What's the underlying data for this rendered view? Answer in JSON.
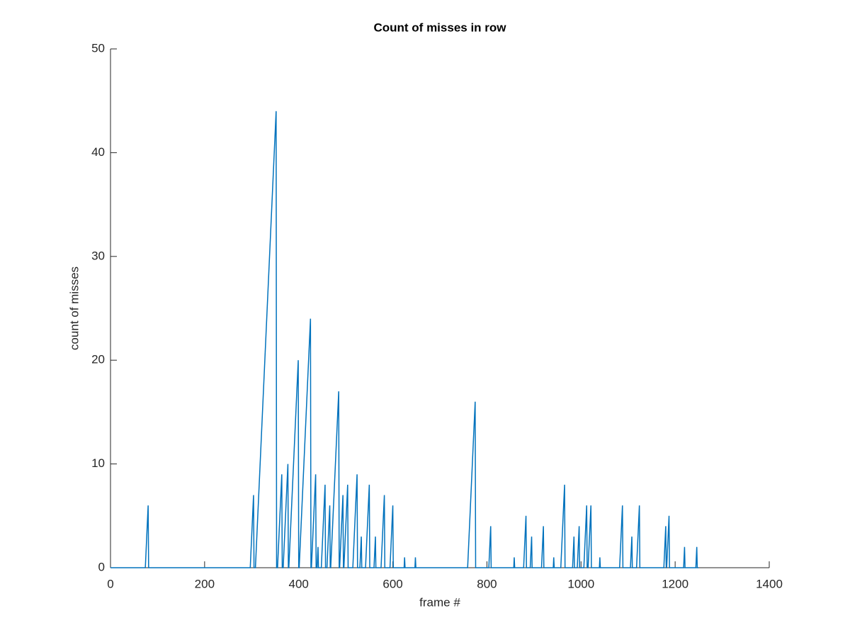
{
  "chart_data": {
    "type": "line",
    "title": "Count of misses in row",
    "x_label": "frame #",
    "y_label": "count of misses",
    "x": [
      0,
      74,
      80,
      81,
      297,
      304,
      305,
      308,
      352,
      353,
      355,
      364,
      365,
      367,
      377,
      378,
      379,
      399,
      400,
      401,
      425,
      426,
      427,
      436,
      437,
      439,
      441,
      442,
      448,
      456,
      457,
      460,
      466,
      467,
      468,
      485,
      486,
      487,
      494,
      495,
      496,
      504,
      505,
      515,
      524,
      525,
      530,
      533,
      534,
      542,
      550,
      551,
      560,
      563,
      564,
      575,
      582,
      583,
      594,
      600,
      601,
      624,
      625,
      626,
      647,
      648,
      649,
      759,
      775,
      776,
      804,
      808,
      809,
      857,
      858,
      859,
      878,
      883,
      884,
      892,
      895,
      896,
      916,
      920,
      921,
      941,
      942,
      943,
      957,
      965,
      966,
      982,
      985,
      986,
      992,
      996,
      997,
      1006,
      1012,
      1013,
      1015,
      1021,
      1022,
      1039,
      1040,
      1041,
      1082,
      1088,
      1089,
      1105,
      1108,
      1109,
      1118,
      1124,
      1125,
      1176,
      1180,
      1181,
      1182,
      1187,
      1188,
      1218,
      1220,
      1221,
      1244,
      1246,
      1247,
      1250
    ],
    "series": [
      {
        "color": "#0072bd",
        "values": [
          0,
          0,
          6,
          0,
          0,
          7,
          0,
          0,
          44,
          0,
          0,
          9,
          0,
          0,
          10,
          0,
          0,
          20,
          0,
          0,
          24,
          0,
          0,
          9,
          0,
          0,
          2,
          0,
          0,
          8,
          0,
          0,
          6,
          0,
          0,
          17,
          0,
          0,
          7,
          0,
          0,
          8,
          0,
          0,
          9,
          0,
          0,
          3,
          0,
          0,
          8,
          0,
          0,
          3,
          0,
          0,
          7,
          0,
          0,
          6,
          0,
          0,
          1,
          0,
          0,
          1,
          0,
          0,
          16,
          0,
          0,
          4,
          0,
          0,
          1,
          0,
          0,
          5,
          0,
          0,
          3,
          0,
          0,
          4,
          0,
          0,
          1,
          0,
          0,
          8,
          0,
          0,
          3,
          0,
          0,
          4,
          0,
          0,
          6,
          0,
          0,
          6,
          0,
          0,
          1,
          0,
          0,
          6,
          0,
          0,
          3,
          0,
          0,
          6,
          0,
          0,
          4,
          0,
          0,
          5,
          0,
          0,
          2,
          0,
          0,
          2,
          0,
          0
        ]
      }
    ],
    "xlim": [
      0,
      1400
    ],
    "xticks": [
      0,
      200,
      400,
      600,
      800,
      1000,
      1200,
      1400
    ],
    "ylim": [
      0,
      50
    ],
    "yticks": [
      0,
      10,
      20,
      30,
      40,
      50
    ]
  }
}
